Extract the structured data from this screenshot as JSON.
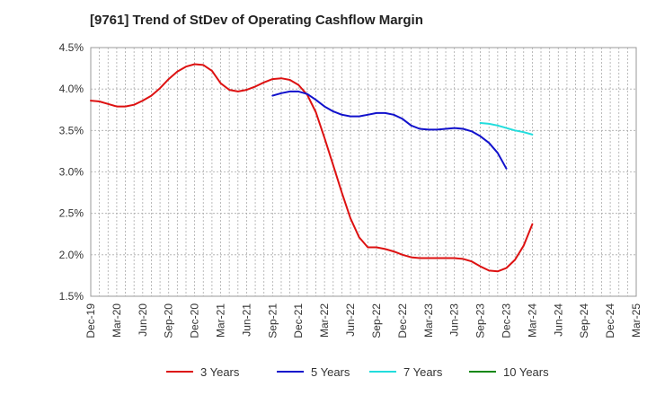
{
  "chart_data": {
    "type": "line",
    "title": "[9761]  Trend of StDev of Operating Cashflow Margin",
    "xlabel": "",
    "ylabel": "",
    "ylim": [
      1.5,
      4.5
    ],
    "y_ticks": [
      1.5,
      2.0,
      2.5,
      3.0,
      3.5,
      4.0,
      4.5
    ],
    "y_tick_labels": [
      "1.5%",
      "2.0%",
      "2.5%",
      "3.0%",
      "3.5%",
      "4.0%",
      "4.5%"
    ],
    "x_tick_labels": [
      "Dec-19",
      "Mar-20",
      "Jun-20",
      "Sep-20",
      "Dec-20",
      "Mar-21",
      "Jun-21",
      "Sep-21",
      "Dec-21",
      "Mar-22",
      "Jun-22",
      "Sep-22",
      "Dec-22",
      "Mar-23",
      "Jun-23",
      "Sep-23",
      "Dec-23",
      "Mar-24",
      "Jun-24",
      "Sep-24",
      "Dec-24",
      "Mar-25"
    ],
    "x_months": [
      "Dec-19",
      "Jan-20",
      "Feb-20",
      "Mar-20",
      "Apr-20",
      "May-20",
      "Jun-20",
      "Jul-20",
      "Aug-20",
      "Sep-20",
      "Oct-20",
      "Nov-20",
      "Dec-20",
      "Jan-21",
      "Feb-21",
      "Mar-21",
      "Apr-21",
      "May-21",
      "Jun-21",
      "Jul-21",
      "Aug-21",
      "Sep-21",
      "Oct-21",
      "Nov-21",
      "Dec-21",
      "Jan-22",
      "Feb-22",
      "Mar-22",
      "Apr-22",
      "May-22",
      "Jun-22",
      "Jul-22",
      "Aug-22",
      "Sep-22",
      "Oct-22",
      "Nov-22",
      "Dec-22",
      "Jan-23",
      "Feb-23",
      "Mar-23",
      "Apr-23",
      "May-23",
      "Jun-23",
      "Jul-23",
      "Aug-23",
      "Sep-23",
      "Oct-23",
      "Nov-23",
      "Dec-23",
      "Jan-24",
      "Feb-24",
      "Mar-24",
      "Apr-24",
      "May-24",
      "Jun-24",
      "Jul-24",
      "Aug-24",
      "Sep-24",
      "Oct-24",
      "Nov-24",
      "Dec-24",
      "Jan-25",
      "Feb-25",
      "Mar-25"
    ],
    "grid": true,
    "legend_position": "bottom",
    "series": [
      {
        "name": "3 Years",
        "color": "#dd1111",
        "values": [
          3.86,
          3.85,
          3.82,
          3.79,
          3.79,
          3.81,
          3.86,
          3.92,
          4.01,
          4.12,
          4.21,
          4.27,
          4.3,
          4.29,
          4.22,
          4.07,
          3.99,
          3.97,
          3.99,
          4.03,
          4.08,
          4.12,
          4.13,
          4.11,
          4.05,
          3.93,
          3.72,
          3.41,
          3.08,
          2.75,
          2.44,
          2.21,
          2.09,
          2.09,
          2.07,
          2.04,
          2.0,
          1.97,
          1.96,
          1.96,
          1.96,
          1.96,
          1.96,
          1.95,
          1.92,
          1.86,
          1.81,
          1.8,
          1.84,
          1.94,
          2.11,
          2.37,
          null,
          null,
          null,
          null,
          null,
          null,
          null,
          null,
          null,
          null,
          null,
          null
        ]
      },
      {
        "name": "5 Years",
        "color": "#1111cc",
        "values": [
          null,
          null,
          null,
          null,
          null,
          null,
          null,
          null,
          null,
          null,
          null,
          null,
          null,
          null,
          null,
          null,
          null,
          null,
          null,
          null,
          null,
          3.92,
          3.95,
          3.97,
          3.97,
          3.94,
          3.87,
          3.79,
          3.73,
          3.69,
          3.67,
          3.67,
          3.69,
          3.71,
          3.71,
          3.69,
          3.64,
          3.56,
          3.52,
          3.51,
          3.51,
          3.52,
          3.53,
          3.52,
          3.49,
          3.43,
          3.35,
          3.23,
          3.04,
          null,
          null,
          null,
          null,
          null,
          null,
          null,
          null,
          null,
          null,
          null,
          null,
          null,
          null,
          null
        ]
      },
      {
        "name": "7 Years",
        "color": "#22dddd",
        "values": [
          null,
          null,
          null,
          null,
          null,
          null,
          null,
          null,
          null,
          null,
          null,
          null,
          null,
          null,
          null,
          null,
          null,
          null,
          null,
          null,
          null,
          null,
          null,
          null,
          null,
          null,
          null,
          null,
          null,
          null,
          null,
          null,
          null,
          null,
          null,
          null,
          null,
          null,
          null,
          null,
          null,
          null,
          null,
          null,
          null,
          3.59,
          3.58,
          3.56,
          3.53,
          3.5,
          3.48,
          3.45,
          null,
          null,
          null,
          null,
          null,
          null,
          null,
          null,
          null,
          null,
          null,
          null
        ]
      },
      {
        "name": "10 Years",
        "color": "#118811",
        "values": []
      }
    ]
  }
}
